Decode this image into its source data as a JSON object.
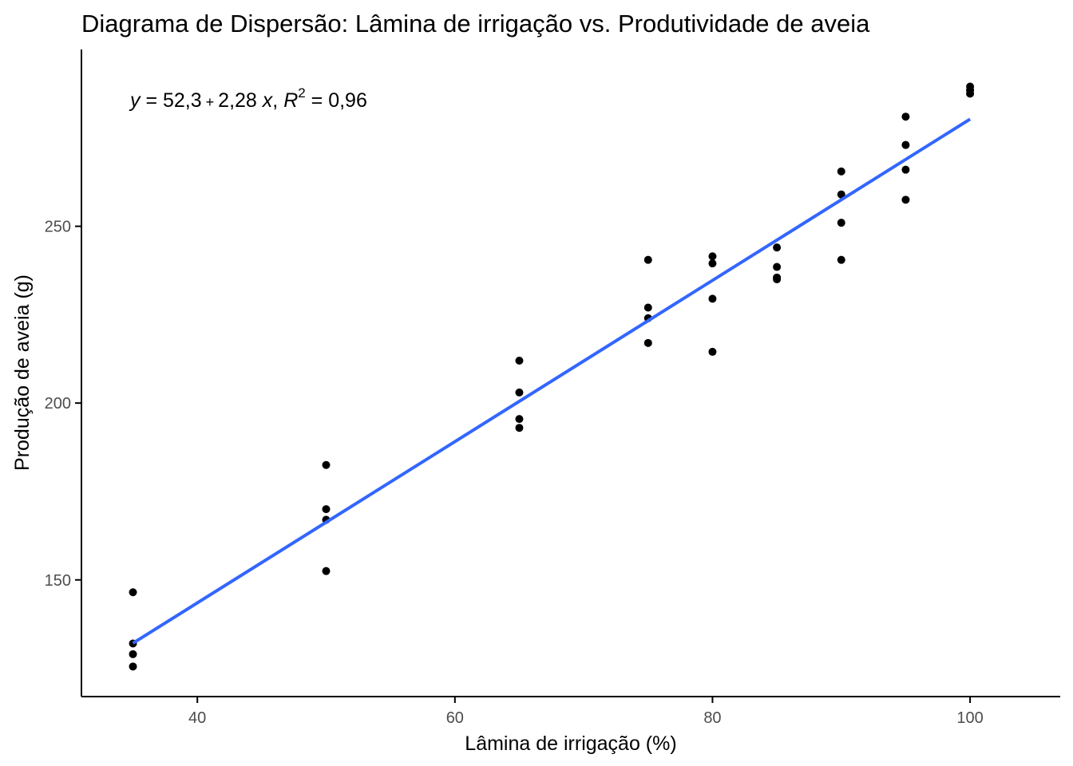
{
  "chart_data": {
    "type": "scatter",
    "title": "Diagrama de Dispersão: Lâmina de irrigação vs. Produtividade de aveia",
    "xlabel": "Lâmina de irrigação (%)",
    "ylabel": "Produção de aveia (g)",
    "xlim": [
      31,
      107
    ],
    "ylim": [
      117,
      300
    ],
    "x_ticks": [
      40,
      60,
      80,
      100
    ],
    "x_tick_labels": [
      "40",
      "60",
      "80",
      "100"
    ],
    "y_ticks": [
      150,
      200,
      250
    ],
    "y_tick_labels": [
      "150",
      "200",
      "250"
    ],
    "grid": false,
    "legend": "none",
    "point_color": "#000000",
    "line_color": "#3366FF",
    "annotation": {
      "text_parts": [
        "y",
        " = 52,3",
        " + ",
        "2,28 ",
        "x",
        ", ",
        "R",
        "2",
        " = 0,96"
      ]
    },
    "regression": {
      "intercept": 52.3,
      "slope": 2.28,
      "x_range": [
        35,
        100
      ]
    },
    "points": [
      {
        "x": 35,
        "y": 146.5
      },
      {
        "x": 35,
        "y": 132.0
      },
      {
        "x": 35,
        "y": 129.0
      },
      {
        "x": 35,
        "y": 125.5
      },
      {
        "x": 50,
        "y": 182.5
      },
      {
        "x": 50,
        "y": 170.0
      },
      {
        "x": 50,
        "y": 167.0
      },
      {
        "x": 50,
        "y": 152.5
      },
      {
        "x": 65,
        "y": 212.0
      },
      {
        "x": 65,
        "y": 203.0
      },
      {
        "x": 65,
        "y": 195.5
      },
      {
        "x": 65,
        "y": 193.0
      },
      {
        "x": 75,
        "y": 240.5
      },
      {
        "x": 75,
        "y": 227.0
      },
      {
        "x": 75,
        "y": 224.0
      },
      {
        "x": 75,
        "y": 217.0
      },
      {
        "x": 80,
        "y": 241.5
      },
      {
        "x": 80,
        "y": 239.5
      },
      {
        "x": 80,
        "y": 229.5
      },
      {
        "x": 80,
        "y": 214.5
      },
      {
        "x": 85,
        "y": 244.0
      },
      {
        "x": 85,
        "y": 238.5
      },
      {
        "x": 85,
        "y": 235.5
      },
      {
        "x": 85,
        "y": 235.0
      },
      {
        "x": 90,
        "y": 265.5
      },
      {
        "x": 90,
        "y": 259.0
      },
      {
        "x": 90,
        "y": 251.0
      },
      {
        "x": 90,
        "y": 240.5
      },
      {
        "x": 95,
        "y": 281.0
      },
      {
        "x": 95,
        "y": 273.0
      },
      {
        "x": 95,
        "y": 266.0
      },
      {
        "x": 95,
        "y": 257.5
      },
      {
        "x": 100,
        "y": 289.5
      },
      {
        "x": 100,
        "y": 288.5
      },
      {
        "x": 100,
        "y": 287.5
      }
    ]
  }
}
